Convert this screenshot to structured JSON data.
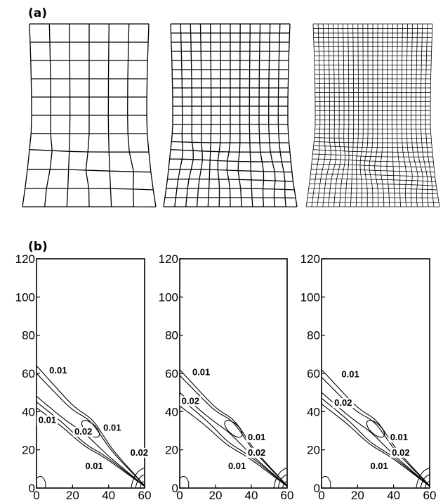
{
  "panel_labels": {
    "a": "(a)",
    "b": "(b)"
  },
  "meshes": [
    {
      "cols": 6,
      "rows": 10
    },
    {
      "cols": 12,
      "rows": 20
    },
    {
      "cols": 24,
      "rows": 40
    }
  ],
  "chart_data": [
    {
      "type": "contour",
      "xlim": [
        0,
        60
      ],
      "ylim": [
        0,
        120
      ],
      "xticks": [
        "0",
        "20",
        "40",
        "60"
      ],
      "yticks": [
        "0",
        "20",
        "40",
        "60",
        "80",
        "100",
        "120"
      ],
      "contour_labels": [
        {
          "text": "0.01",
          "x": 12,
          "y": 60
        },
        {
          "text": "0.01",
          "x": 6,
          "y": 34
        },
        {
          "text": "0.02",
          "x": 26,
          "y": 28
        },
        {
          "text": "0.01",
          "x": 42,
          "y": 30
        },
        {
          "text": "0.01",
          "x": 32,
          "y": 10
        },
        {
          "text": "0.02",
          "x": 57,
          "y": 17
        }
      ],
      "bands": [
        {
          "c0": 64,
          "c1": 2,
          "y0": 50
        },
        {
          "c0": 60,
          "c1": 2,
          "y0": 50
        },
        {
          "c0": 48,
          "c1": 2,
          "y0": 50
        },
        {
          "c0": 45,
          "c1": 2,
          "y0": 50
        },
        {
          "c0": 42,
          "c1": 2,
          "y0": 50
        }
      ]
    },
    {
      "type": "contour",
      "xlim": [
        0,
        60
      ],
      "ylim": [
        0,
        120
      ],
      "xticks": [
        "0",
        "20",
        "40",
        "60"
      ],
      "yticks": [
        "0",
        "20",
        "40",
        "60",
        "80",
        "100",
        "120"
      ],
      "contour_labels": [
        {
          "text": "0.01",
          "x": 12,
          "y": 59
        },
        {
          "text": "0.02",
          "x": 6,
          "y": 44
        },
        {
          "text": "0.01",
          "x": 43,
          "y": 25
        },
        {
          "text": "0.02",
          "x": 43,
          "y": 17
        },
        {
          "text": "0.01",
          "x": 32,
          "y": 10
        }
      ],
      "bands": [
        {
          "c0": 62,
          "c1": 2,
          "y0": 50
        },
        {
          "c0": 59,
          "c1": 2,
          "y0": 50
        },
        {
          "c0": 50,
          "c1": 2,
          "y0": 50
        },
        {
          "c0": 47,
          "c1": 2,
          "y0": 50
        },
        {
          "c0": 43,
          "c1": 2,
          "y0": 50
        }
      ]
    },
    {
      "type": "contour",
      "xlim": [
        0,
        60
      ],
      "ylim": [
        0,
        120
      ],
      "xticks": [
        "0",
        "20",
        "40",
        "60"
      ],
      "yticks": [
        "0",
        "20",
        "40",
        "60",
        "80",
        "100",
        "120"
      ],
      "contour_labels": [
        {
          "text": "0.01",
          "x": 16,
          "y": 58
        },
        {
          "text": "0.02",
          "x": 12,
          "y": 43
        },
        {
          "text": "0.01",
          "x": 43,
          "y": 25
        },
        {
          "text": "0.02",
          "x": 44,
          "y": 17
        },
        {
          "text": "0.01",
          "x": 32,
          "y": 10
        }
      ],
      "bands": [
        {
          "c0": 62,
          "c1": 2,
          "y0": 50
        },
        {
          "c0": 58,
          "c1": 2,
          "y0": 50
        },
        {
          "c0": 50,
          "c1": 2,
          "y0": 50
        },
        {
          "c0": 47,
          "c1": 2,
          "y0": 50
        },
        {
          "c0": 44,
          "c1": 2,
          "y0": 50
        }
      ]
    }
  ]
}
